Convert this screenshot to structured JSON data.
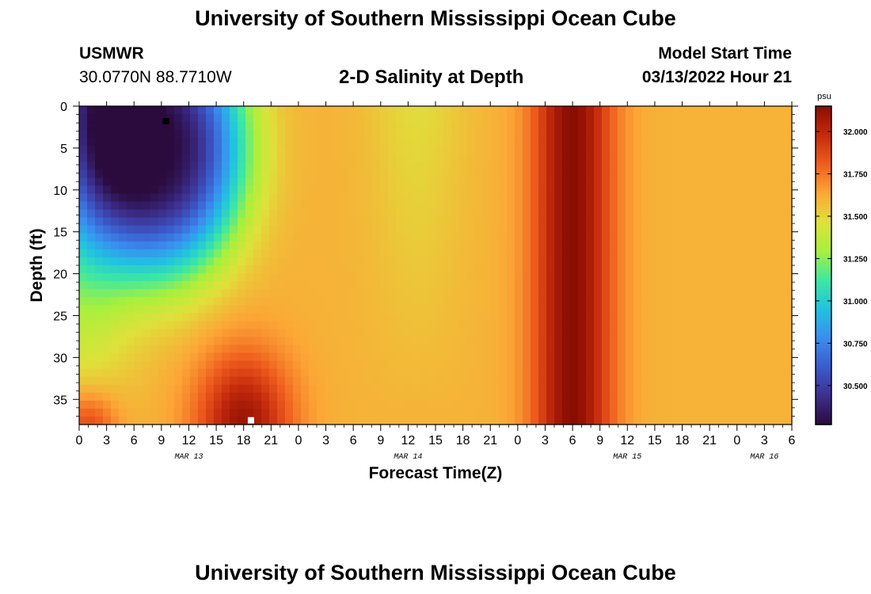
{
  "header": {
    "title": "University of Southern Mississippi Ocean Cube",
    "station": "USMWR",
    "coords": "30.0770N  88.7710W",
    "subtitle": "2-D Salinity at Depth",
    "model_start_label": "Model Start Time",
    "model_start_value": "03/13/2022 Hour 21"
  },
  "footer": {
    "title": "University of Southern Mississippi Ocean Cube"
  },
  "chart_data": {
    "type": "heatmap",
    "xlabel": "Forecast Time(Z)",
    "ylabel": "Depth (ft)",
    "x_tick_labels": [
      "0",
      "3",
      "6",
      "9",
      "12",
      "15",
      "18",
      "21",
      "0",
      "3",
      "6",
      "9",
      "12",
      "15",
      "18",
      "21",
      "0",
      "3",
      "6",
      "9",
      "12",
      "15",
      "18",
      "21",
      "0",
      "3",
      "6"
    ],
    "x_day_labels": [
      "MAR 13",
      "MAR 14",
      "MAR 15",
      "MAR 16"
    ],
    "y_tick_labels": [
      "0",
      "5",
      "10",
      "15",
      "20",
      "25",
      "30",
      "35"
    ],
    "ylim": [
      38,
      0
    ],
    "xlim_hours": [
      0,
      78
    ],
    "colorbar": {
      "unit": "psu",
      "tick_labels": [
        "32.000",
        "31.750",
        "31.500",
        "31.250",
        "31.000",
        "30.750",
        "30.500"
      ],
      "range": [
        30.27,
        32.15
      ],
      "colors": [
        "#2b0a3d",
        "#3d2f8f",
        "#3b5ccc",
        "#3a8ef0",
        "#21c3e0",
        "#3ee8a2",
        "#a8f03c",
        "#dfe13a",
        "#fca636",
        "#ef5d1e",
        "#c52a0c",
        "#8a0d02"
      ]
    },
    "salinity_features": [
      {
        "name": "low-salinity region",
        "hour": 9,
        "depth": 5,
        "value": 30.3
      },
      {
        "name": "high-salinity near bottom",
        "hour": 18,
        "depth": 38,
        "value": 32.1
      },
      {
        "name": "high-salinity column",
        "hour": 54,
        "depth_range": [
          0,
          38
        ],
        "value": 32.15
      },
      {
        "name": "background",
        "value": 31.6
      }
    ],
    "markers": [
      {
        "name": "black-marker",
        "hour": 9.5,
        "depth": 1.8,
        "color": "#000000"
      },
      {
        "name": "white-marker",
        "hour": 18.8,
        "depth": 37.5,
        "color": "#ffffff"
      }
    ]
  }
}
